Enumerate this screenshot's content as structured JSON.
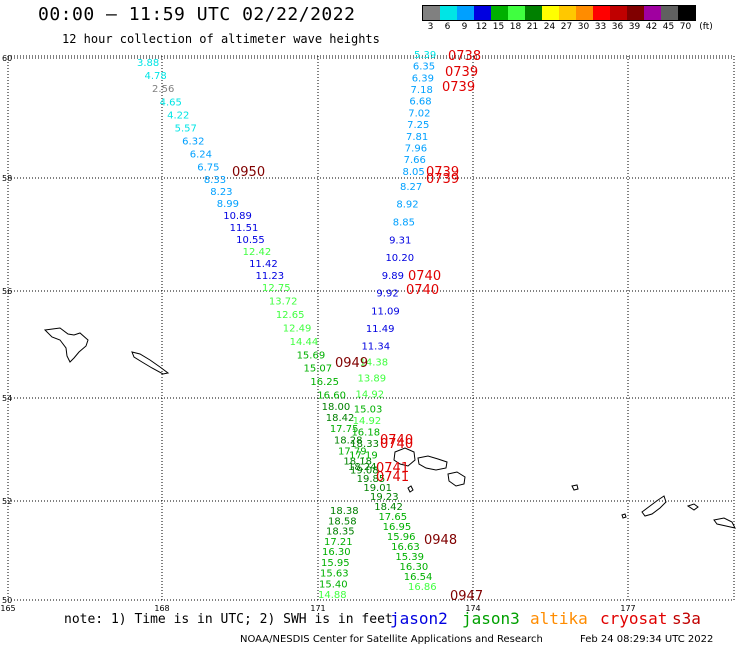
{
  "header": {
    "title": "00:00 — 11:59 UTC 02/22/2022",
    "subtitle": "12 hour collection of altimeter wave heights"
  },
  "legend": {
    "unit": "(ft)",
    "bins": [
      {
        "label": "3",
        "color": "#808080"
      },
      {
        "label": "6",
        "color": "#00e5e5"
      },
      {
        "label": "9",
        "color": "#00a0ff"
      },
      {
        "label": "12",
        "color": "#0000e0"
      },
      {
        "label": "15",
        "color": "#00b000"
      },
      {
        "label": "18",
        "color": "#40ff40"
      },
      {
        "label": "21",
        "color": "#008000"
      },
      {
        "label": "24",
        "color": "#ffff00"
      },
      {
        "label": "27",
        "color": "#ffc800"
      },
      {
        "label": "30",
        "color": "#ff8c00"
      },
      {
        "label": "33",
        "color": "#ff0000"
      },
      {
        "label": "36",
        "color": "#c00000"
      },
      {
        "label": "39",
        "color": "#800000"
      },
      {
        "label": "42",
        "color": "#a000a0"
      },
      {
        "label": "45",
        "color": "#606060"
      },
      {
        "label": "70",
        "color": "#000000"
      }
    ]
  },
  "axes": {
    "lat_labels": [
      "60",
      "58",
      "56",
      "54",
      "52",
      "50"
    ],
    "lon_labels": [
      "165",
      "168",
      "171",
      "174",
      "177"
    ]
  },
  "footer": {
    "note": "note: 1) Time is in UTC; 2) SWH is in feet",
    "satellites": [
      {
        "name": "jason2",
        "color": "#0000e0"
      },
      {
        "name": "jason3",
        "color": "#00a000"
      },
      {
        "name": "altika",
        "color": "#ff8c00"
      },
      {
        "name": "cryosat",
        "color": "#e00000"
      },
      {
        "name": "s3a",
        "color": "#c00000"
      }
    ],
    "credit": "NOAA/NESDIS Center for Satellite Applications and Research",
    "timestamp": "Feb 24 08:29:34 UTC 2022"
  },
  "tracks": {
    "left_track": [
      {
        "v": "3.88",
        "c": "#00e5e5"
      },
      {
        "v": "4.78",
        "c": "#00e5e5"
      },
      {
        "v": "2.56",
        "c": "#808080"
      },
      {
        "v": "4.65",
        "c": "#00e5e5"
      },
      {
        "v": "4.22",
        "c": "#00e5e5"
      },
      {
        "v": "5.57",
        "c": "#00e5e5"
      },
      {
        "v": "6.32",
        "c": "#00a0ff"
      },
      {
        "v": "6.24",
        "c": "#00a0ff"
      },
      {
        "v": "6.75",
        "c": "#00a0ff"
      },
      {
        "v": "8.33",
        "c": "#00a0ff"
      },
      {
        "v": "8.23",
        "c": "#00a0ff"
      },
      {
        "v": "8.99",
        "c": "#00a0ff"
      },
      {
        "v": "10.89",
        "c": "#0000e0"
      },
      {
        "v": "11.51",
        "c": "#0000e0"
      },
      {
        "v": "10.55",
        "c": "#0000e0"
      },
      {
        "v": "12.42",
        "c": "#40ff40"
      },
      {
        "v": "11.42",
        "c": "#0000e0"
      },
      {
        "v": "11.23",
        "c": "#0000e0"
      },
      {
        "v": "12.75",
        "c": "#40ff40"
      },
      {
        "v": "13.72",
        "c": "#40ff40"
      },
      {
        "v": "12.65",
        "c": "#40ff40"
      },
      {
        "v": "12.49",
        "c": "#40ff40"
      },
      {
        "v": "14.44",
        "c": "#40ff40"
      },
      {
        "v": "15.69",
        "c": "#00b000"
      },
      {
        "v": "15.07",
        "c": "#00b000"
      },
      {
        "v": "16.25",
        "c": "#00b000"
      },
      {
        "v": "16.60",
        "c": "#00b000"
      },
      {
        "v": "18.00",
        "c": "#008000"
      },
      {
        "v": "18.42",
        "c": "#008000"
      },
      {
        "v": "17.75",
        "c": "#00b000"
      },
      {
        "v": "18.28",
        "c": "#008000"
      },
      {
        "v": "17.79",
        "c": "#00b000"
      },
      {
        "v": "18.18",
        "c": "#008000"
      },
      {
        "v": "19.08",
        "c": "#008000"
      },
      {
        "v": "19.85",
        "c": "#008000"
      },
      {
        "v": "19.01",
        "c": "#008000"
      },
      {
        "v": "19.23",
        "c": "#008000"
      },
      {
        "v": "18.42",
        "c": "#008000"
      },
      {
        "v": "17.65",
        "c": "#00b000"
      },
      {
        "v": "16.95",
        "c": "#00b000"
      },
      {
        "v": "15.96",
        "c": "#00b000"
      },
      {
        "v": "16.63",
        "c": "#00b000"
      },
      {
        "v": "15.39",
        "c": "#00b000"
      },
      {
        "v": "16.30",
        "c": "#00b000"
      },
      {
        "v": "16.54",
        "c": "#00b000"
      },
      {
        "v": "16.86",
        "c": "#40ff40"
      }
    ],
    "right_track": [
      {
        "v": "5.39",
        "c": "#00e5e5"
      },
      {
        "v": "6.35",
        "c": "#00a0ff"
      },
      {
        "v": "6.39",
        "c": "#00a0ff"
      },
      {
        "v": "7.18",
        "c": "#00a0ff"
      },
      {
        "v": "6.68",
        "c": "#00a0ff"
      },
      {
        "v": "7.02",
        "c": "#00a0ff"
      },
      {
        "v": "7.25",
        "c": "#00a0ff"
      },
      {
        "v": "7.81",
        "c": "#00a0ff"
      },
      {
        "v": "7.96",
        "c": "#00a0ff"
      },
      {
        "v": "7.66",
        "c": "#00a0ff"
      },
      {
        "v": "8.05",
        "c": "#00a0ff"
      },
      {
        "v": "8.27",
        "c": "#00a0ff"
      },
      {
        "v": "8.92",
        "c": "#00a0ff"
      },
      {
        "v": "8.85",
        "c": "#00a0ff"
      },
      {
        "v": "9.31",
        "c": "#0000e0"
      },
      {
        "v": "10.20",
        "c": "#0000e0"
      },
      {
        "v": "9.89",
        "c": "#0000e0"
      },
      {
        "v": "9.92",
        "c": "#0000e0"
      },
      {
        "v": "11.09",
        "c": "#0000e0"
      },
      {
        "v": "11.49",
        "c": "#0000e0"
      },
      {
        "v": "11.34",
        "c": "#0000e0"
      },
      {
        "v": "14.38",
        "c": "#40ff40"
      },
      {
        "v": "13.89",
        "c": "#40ff40"
      },
      {
        "v": "14.92",
        "c": "#40ff40"
      },
      {
        "v": "15.03",
        "c": "#00b000"
      },
      {
        "v": "14.92",
        "c": "#40ff40"
      },
      {
        "v": "16.18",
        "c": "#00b000"
      },
      {
        "v": "18.33",
        "c": "#008000"
      },
      {
        "v": "17.19",
        "c": "#00b000"
      },
      {
        "v": "18.24",
        "c": "#008000"
      }
    ],
    "lower_track": [
      {
        "v": "18.38",
        "c": "#008000"
      },
      {
        "v": "18.58",
        "c": "#008000"
      },
      {
        "v": "18.35",
        "c": "#008000"
      },
      {
        "v": "17.21",
        "c": "#00b000"
      },
      {
        "v": "16.30",
        "c": "#00b000"
      },
      {
        "v": "15.95",
        "c": "#00b000"
      },
      {
        "v": "15.63",
        "c": "#00b000"
      },
      {
        "v": "15.40",
        "c": "#00b000"
      },
      {
        "v": "14.88",
        "c": "#40ff40"
      }
    ],
    "time_labels": [
      {
        "t": "0738",
        "c": "#e00000"
      },
      {
        "t": "0739",
        "c": "#e00000"
      },
      {
        "t": "0739",
        "c": "#e00000"
      },
      {
        "t": "0950",
        "c": "#800000"
      },
      {
        "t": "0739",
        "c": "#e00000"
      },
      {
        "t": "0739",
        "c": "#e00000"
      },
      {
        "t": "0740",
        "c": "#e00000"
      },
      {
        "t": "0740",
        "c": "#e00000"
      },
      {
        "t": "0949",
        "c": "#800000"
      },
      {
        "t": "0740",
        "c": "#e00000"
      },
      {
        "t": "0740",
        "c": "#e00000"
      },
      {
        "t": "0741",
        "c": "#e00000"
      },
      {
        "t": "0741",
        "c": "#e00000"
      },
      {
        "t": "0948",
        "c": "#800000"
      },
      {
        "t": "0947",
        "c": "#800000"
      }
    ]
  }
}
